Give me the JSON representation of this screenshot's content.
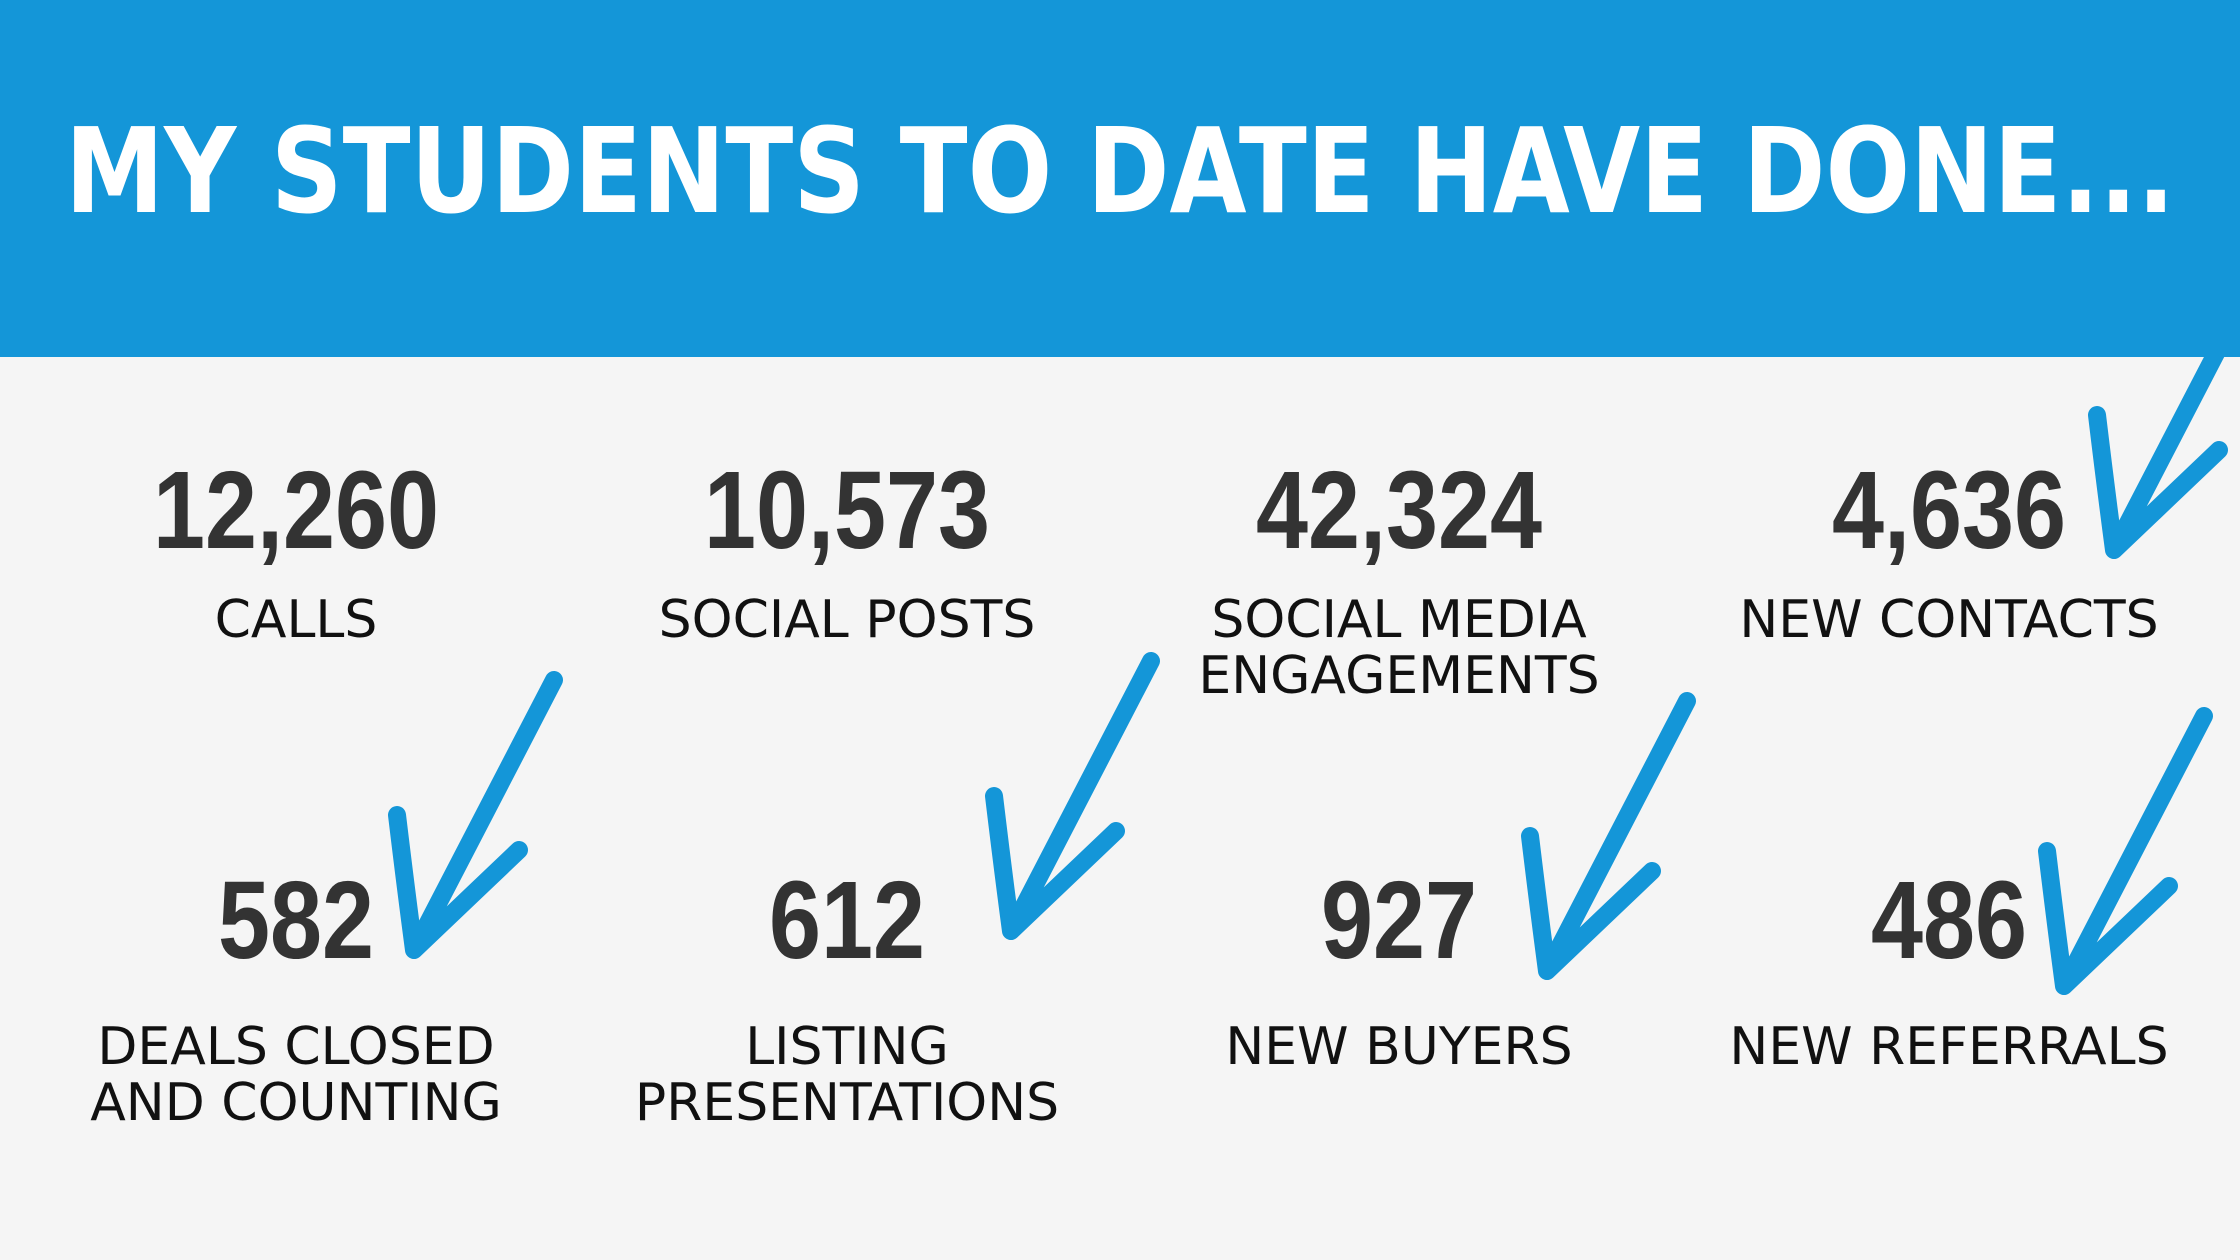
{
  "header": {
    "title": "MY STUDENTS TO DATE HAVE DONE..."
  },
  "stats": [
    {
      "value": "12,260",
      "label": [
        "CALLS"
      ]
    },
    {
      "value": "10,573",
      "label": [
        "SOCIAL POSTS"
      ]
    },
    {
      "value": "42,324",
      "label": [
        "SOCIAL MEDIA",
        "ENGAGEMENTS"
      ]
    },
    {
      "value": "4,636",
      "label": [
        "NEW CONTACTS"
      ]
    },
    {
      "value": "582",
      "label": [
        "DEALS CLOSED",
        "AND COUNTING"
      ]
    },
    {
      "value": "612",
      "label": [
        "LISTING",
        "PRESENTATIONS"
      ]
    },
    {
      "value": "927",
      "label": [
        "NEW BUYERS"
      ]
    },
    {
      "value": "486",
      "label": [
        "NEW REFERRALS"
      ]
    }
  ]
}
